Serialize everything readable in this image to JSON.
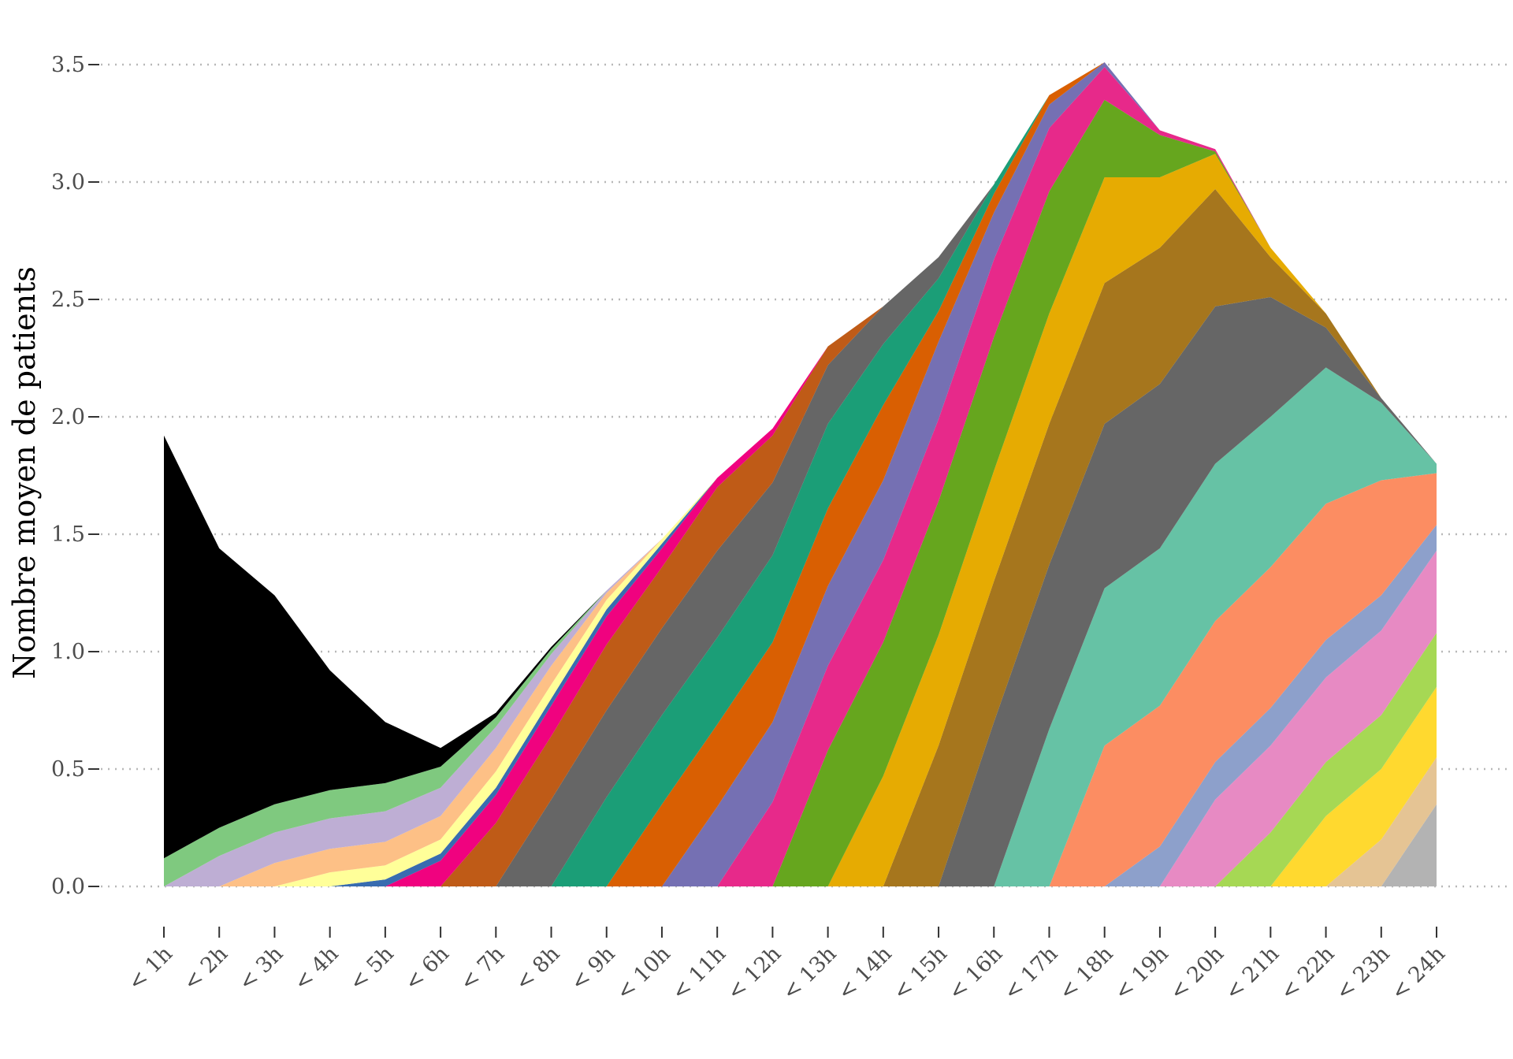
{
  "chart_data": {
    "type": "area",
    "stacked": true,
    "title": "",
    "xlabel": "",
    "ylabel": "Nombre moyen de patients",
    "ylim": [
      0,
      3.5
    ],
    "yticks": [
      "0.0",
      "0.5",
      "1.0",
      "1.5",
      "2.0",
      "2.5",
      "3.0",
      "3.5"
    ],
    "grid": "horizontal dotted",
    "legend": "none",
    "categories": [
      "< 1h",
      "< 2h",
      "< 3h",
      "< 4h",
      "< 5h",
      "< 6h",
      "< 7h",
      "< 8h",
      "< 9h",
      "< 10h",
      "< 11h",
      "< 12h",
      "< 13h",
      "< 14h",
      "< 15h",
      "< 16h",
      "< 17h",
      "< 18h",
      "< 19h",
      "< 20h",
      "< 21h",
      "< 22h",
      "< 23h",
      "< 24h"
    ],
    "colors": [
      "#b3b3b3",
      "#e5c494",
      "#ffd92f",
      "#a6d854",
      "#e78ac3",
      "#8da0cb",
      "#fc8d62",
      "#66c2a5",
      "#666666",
      "#a6761d",
      "#e6ab02",
      "#66a61e",
      "#e7298a",
      "#7570b3",
      "#d95f02",
      "#1b9e77",
      "#666666",
      "#bf5b17",
      "#f0027f",
      "#386cb0",
      "#ffff99",
      "#fdc086",
      "#beaed4",
      "#7fc97f",
      "#000000"
    ],
    "series": [
      {
        "values": [
          0,
          0,
          0,
          0,
          0,
          0,
          0,
          0,
          0,
          0,
          0,
          0,
          0,
          0,
          0,
          0,
          0,
          0,
          0,
          0,
          0,
          0,
          0,
          0.35
        ]
      },
      {
        "values": [
          0,
          0,
          0,
          0,
          0,
          0,
          0,
          0,
          0,
          0,
          0,
          0,
          0,
          0,
          0,
          0,
          0,
          0,
          0,
          0,
          0,
          0,
          0.2,
          0.2
        ]
      },
      {
        "values": [
          0,
          0,
          0,
          0,
          0,
          0,
          0,
          0,
          0,
          0,
          0,
          0,
          0,
          0,
          0,
          0,
          0,
          0,
          0,
          0,
          0,
          0.3,
          0.3,
          0.3
        ]
      },
      {
        "values": [
          0,
          0,
          0,
          0,
          0,
          0,
          0,
          0,
          0,
          0,
          0,
          0,
          0,
          0,
          0,
          0,
          0,
          0,
          0,
          0,
          0.23,
          0.23,
          0.23,
          0.23
        ]
      },
      {
        "values": [
          0,
          0,
          0,
          0,
          0,
          0,
          0,
          0,
          0,
          0,
          0,
          0,
          0,
          0,
          0,
          0,
          0,
          0,
          0,
          0.37,
          0.37,
          0.36,
          0.36,
          0.35
        ]
      },
      {
        "values": [
          0,
          0,
          0,
          0,
          0,
          0,
          0,
          0,
          0,
          0,
          0,
          0,
          0,
          0,
          0,
          0,
          0,
          0,
          0.17,
          0.16,
          0.16,
          0.16,
          0.15,
          0.11
        ]
      },
      {
        "values": [
          0,
          0,
          0,
          0,
          0,
          0,
          0,
          0,
          0,
          0,
          0,
          0,
          0,
          0,
          0,
          0,
          0,
          0.6,
          0.6,
          0.6,
          0.6,
          0.58,
          0.49,
          0.22
        ]
      },
      {
        "values": [
          0,
          0,
          0,
          0,
          0,
          0,
          0,
          0,
          0,
          0,
          0,
          0,
          0,
          0,
          0,
          0,
          0.67,
          0.67,
          0.67,
          0.67,
          0.64,
          0.58,
          0.33,
          0.04
        ]
      },
      {
        "values": [
          0,
          0,
          0,
          0,
          0,
          0,
          0,
          0,
          0,
          0,
          0,
          0,
          0,
          0,
          0,
          0.7,
          0.7,
          0.7,
          0.7,
          0.67,
          0.51,
          0.17,
          0.02,
          0
        ]
      },
      {
        "values": [
          0,
          0,
          0,
          0,
          0,
          0,
          0,
          0,
          0,
          0,
          0,
          0,
          0,
          0,
          0.6,
          0.6,
          0.6,
          0.6,
          0.58,
          0.5,
          0.17,
          0.06,
          0,
          0
        ]
      },
      {
        "values": [
          0,
          0,
          0,
          0,
          0,
          0,
          0,
          0,
          0,
          0,
          0,
          0,
          0,
          0.47,
          0.47,
          0.47,
          0.47,
          0.45,
          0.3,
          0.15,
          0.04,
          0,
          0,
          0
        ]
      },
      {
        "values": [
          0,
          0,
          0,
          0,
          0,
          0,
          0,
          0,
          0,
          0,
          0,
          0,
          0.58,
          0.57,
          0.57,
          0.57,
          0.52,
          0.33,
          0.18,
          0.01,
          0,
          0,
          0,
          0
        ]
      },
      {
        "values": [
          0,
          0,
          0,
          0,
          0,
          0,
          0,
          0,
          0,
          0,
          0,
          0.36,
          0.36,
          0.35,
          0.35,
          0.33,
          0.27,
          0.14,
          0.02,
          0.01,
          0,
          0,
          0,
          0
        ]
      },
      {
        "values": [
          0,
          0,
          0,
          0,
          0,
          0,
          0,
          0,
          0,
          0,
          0.34,
          0.34,
          0.34,
          0.34,
          0.33,
          0.2,
          0.1,
          0.02,
          0,
          0,
          0,
          0,
          0,
          0
        ]
      },
      {
        "values": [
          0,
          0,
          0,
          0,
          0,
          0,
          0,
          0,
          0,
          0.35,
          0.35,
          0.34,
          0.33,
          0.32,
          0.13,
          0.08,
          0.04,
          0,
          0,
          0,
          0,
          0,
          0,
          0
        ]
      },
      {
        "values": [
          0,
          0,
          0,
          0,
          0,
          0,
          0,
          0,
          0.38,
          0.38,
          0.37,
          0.37,
          0.36,
          0.26,
          0.14,
          0.04,
          0,
          0,
          0,
          0,
          0,
          0,
          0,
          0
        ]
      },
      {
        "values": [
          0,
          0,
          0,
          0,
          0,
          0,
          0,
          0.37,
          0.37,
          0.37,
          0.37,
          0.31,
          0.25,
          0.16,
          0.09,
          0,
          0,
          0,
          0,
          0,
          0,
          0,
          0,
          0
        ]
      },
      {
        "values": [
          0,
          0,
          0,
          0,
          0,
          0,
          0.27,
          0.27,
          0.28,
          0.26,
          0.27,
          0.2,
          0.08,
          0,
          0,
          0,
          0,
          0,
          0,
          0,
          0,
          0,
          0,
          0
        ]
      },
      {
        "values": [
          0,
          0,
          0,
          0,
          0,
          0.11,
          0.12,
          0.13,
          0.12,
          0.08,
          0.04,
          0.03,
          0,
          0,
          0,
          0,
          0,
          0,
          0,
          0,
          0,
          0,
          0,
          0
        ]
      },
      {
        "values": [
          0,
          0,
          0,
          0,
          0.03,
          0.03,
          0.03,
          0.03,
          0.03,
          0.02,
          0,
          0,
          0,
          0,
          0,
          0,
          0,
          0,
          0,
          0,
          0,
          0,
          0,
          0
        ]
      },
      {
        "values": [
          0,
          0,
          0,
          0.06,
          0.06,
          0.06,
          0.07,
          0.06,
          0.04,
          0.02,
          0,
          0,
          0,
          0,
          0,
          0,
          0,
          0,
          0,
          0,
          0,
          0,
          0,
          0
        ]
      },
      {
        "values": [
          0,
          0,
          0.1,
          0.1,
          0.1,
          0.1,
          0.1,
          0.08,
          0.03,
          0,
          0,
          0,
          0,
          0,
          0,
          0,
          0,
          0,
          0,
          0,
          0,
          0,
          0,
          0
        ]
      },
      {
        "values": [
          0,
          0.13,
          0.13,
          0.13,
          0.13,
          0.12,
          0.09,
          0.05,
          0.01,
          0,
          0,
          0,
          0,
          0,
          0,
          0,
          0,
          0,
          0,
          0,
          0,
          0,
          0,
          0
        ]
      },
      {
        "values": [
          0.12,
          0.12,
          0.12,
          0.12,
          0.12,
          0.09,
          0.04,
          0.02,
          0,
          0,
          0,
          0,
          0,
          0,
          0,
          0,
          0,
          0,
          0,
          0,
          0,
          0,
          0,
          0
        ]
      },
      {
        "values": [
          1.8,
          1.19,
          0.89,
          0.51,
          0.26,
          0.08,
          0.02,
          0.01,
          0,
          0,
          0,
          0,
          0,
          0,
          0,
          0,
          0,
          0,
          0,
          0,
          0,
          0,
          0,
          0
        ]
      }
    ]
  }
}
